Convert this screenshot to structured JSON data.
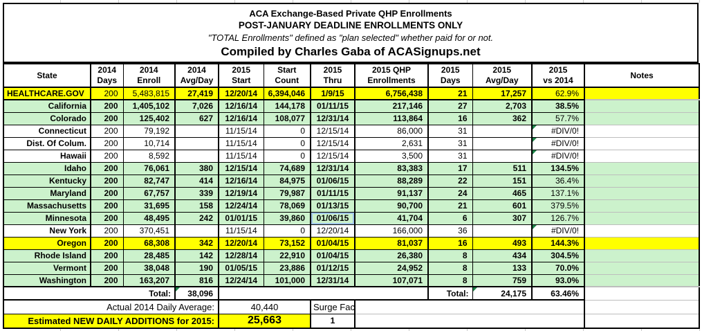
{
  "title": {
    "line1": "ACA Exchange-Based Private QHP Enrollments",
    "line2": "POST-JANUARY DEADLINE ENROLLMENTS ONLY",
    "line3": "\"TOTAL Enrollments\" defined as \"plan selected\" whether paid for or not.",
    "line4": "Compiled by Charles Gaba of ACASignups.net"
  },
  "colors": {
    "row_yellow": "#ffff00",
    "row_green": "#ccf2cc",
    "row_white": "#ffffff",
    "selection_blue": "#9fc5e8",
    "error_indicator_green": "#1e8449"
  },
  "columns": [
    {
      "key": "state",
      "label": "State"
    },
    {
      "key": "days-2014",
      "label": "2014\nDays"
    },
    {
      "key": "enroll-2014",
      "label": "2014\nEnroll"
    },
    {
      "key": "avgday-2014",
      "label": "2014\nAvg/Day"
    },
    {
      "key": "start-2015",
      "label": "2015\nStart"
    },
    {
      "key": "start-count",
      "label": "Start\nCount"
    },
    {
      "key": "thru-2015",
      "label": "2015\nThru"
    },
    {
      "key": "qhp-2015",
      "label": "2015 QHP\nEnrollments"
    },
    {
      "key": "days-2015",
      "label": "2015\nDays"
    },
    {
      "key": "avgday-2015",
      "label": "2015\nAvg/Day"
    },
    {
      "key": "vs-2014",
      "label": "2015\nvs 2014"
    },
    {
      "key": "notes",
      "label": "Notes"
    }
  ],
  "rows": [
    {
      "state": "HEALTHCARE.GOV",
      "bg": "yellow",
      "cells": [
        "200",
        "5,483,815",
        "27,419",
        "12/20/14",
        "6,394,046",
        "1/9/15",
        "6,756,438",
        "21",
        "17,257",
        "62.9%",
        ""
      ],
      "regular": [
        0,
        1,
        9
      ]
    },
    {
      "state": "California",
      "bg": "green",
      "cells": [
        "200",
        "1,405,102",
        "7,026",
        "12/16/14",
        "144,178",
        "01/11/15",
        "217,146",
        "27",
        "2,703",
        "38.5%",
        ""
      ],
      "regular": []
    },
    {
      "state": "Colorado",
      "bg": "green",
      "cells": [
        "200",
        "125,402",
        "627",
        "12/16/14",
        "108,077",
        "12/31/14",
        "113,864",
        "16",
        "362",
        "57.7%",
        ""
      ],
      "regular": [
        9
      ]
    },
    {
      "state": "Connecticut",
      "bg": "white",
      "muted": true,
      "tri": [
        9
      ],
      "cells": [
        "200",
        "79,192",
        "",
        "11/15/14",
        "0",
        "12/15/14",
        "86,000",
        "31",
        "",
        "#DIV/0!",
        ""
      ]
    },
    {
      "state": "Dist. Of Colum.",
      "bg": "white",
      "muted": true,
      "tri": [
        9
      ],
      "cells": [
        "200",
        "10,714",
        "",
        "11/15/14",
        "0",
        "12/15/14",
        "2,631",
        "31",
        "",
        "#DIV/0!",
        ""
      ]
    },
    {
      "state": "Hawaii",
      "bg": "white",
      "muted": true,
      "tri": [
        9
      ],
      "cells": [
        "200",
        "8,592",
        "",
        "11/15/14",
        "0",
        "12/15/14",
        "3,500",
        "31",
        "",
        "#DIV/0!",
        ""
      ]
    },
    {
      "state": "Idaho",
      "bg": "green",
      "cells": [
        "200",
        "76,061",
        "380",
        "12/15/14",
        "74,689",
        "12/31/14",
        "83,383",
        "17",
        "511",
        "134.5%",
        ""
      ],
      "regular": []
    },
    {
      "state": "Kentucky",
      "bg": "green",
      "cells": [
        "200",
        "82,747",
        "414",
        "12/16/14",
        "84,975",
        "01/06/15",
        "88,289",
        "22",
        "151",
        "36.4%",
        ""
      ],
      "regular": [
        9
      ]
    },
    {
      "state": "Maryland",
      "bg": "green",
      "cells": [
        "200",
        "67,757",
        "339",
        "12/19/14",
        "79,987",
        "01/11/15",
        "91,137",
        "24",
        "465",
        "137.1%",
        ""
      ],
      "regular": [
        9
      ]
    },
    {
      "state": "Massachusetts",
      "bg": "green",
      "cells": [
        "200",
        "31,695",
        "158",
        "12/24/14",
        "78,069",
        "01/13/15",
        "90,700",
        "21",
        "601",
        "379.5%",
        ""
      ],
      "regular": [
        9
      ]
    },
    {
      "state": "Minnesota",
      "bg": "green",
      "selected": 5,
      "cells": [
        "200",
        "48,495",
        "242",
        "01/01/15",
        "39,860",
        "01/06/15",
        "41,704",
        "6",
        "307",
        "126.7%",
        ""
      ],
      "regular": [
        9
      ]
    },
    {
      "state": "New York",
      "bg": "white",
      "muted": true,
      "tri": [
        9
      ],
      "cells": [
        "200",
        "370,451",
        "",
        "11/15/14",
        "0",
        "12/20/14",
        "166,000",
        "36",
        "",
        "#DIV/0!",
        ""
      ]
    },
    {
      "state": "Oregon",
      "bg": "yellow",
      "cells": [
        "200",
        "68,308",
        "342",
        "12/20/14",
        "73,152",
        "01/04/15",
        "81,037",
        "16",
        "493",
        "144.3%",
        ""
      ],
      "regular": []
    },
    {
      "state": "Rhode Island",
      "bg": "green",
      "cells": [
        "200",
        "28,485",
        "142",
        "12/28/14",
        "22,910",
        "01/04/15",
        "26,380",
        "8",
        "434",
        "304.5%",
        ""
      ],
      "regular": []
    },
    {
      "state": "Vermont",
      "bg": "green",
      "cells": [
        "200",
        "38,048",
        "190",
        "01/05/15",
        "23,886",
        "01/12/15",
        "24,952",
        "8",
        "133",
        "70.0%",
        ""
      ],
      "regular": []
    },
    {
      "state": "Washington",
      "bg": "green",
      "cells": [
        "200",
        "163,207",
        "816",
        "12/24/14",
        "101,000",
        "12/31/14",
        "107,071",
        "8",
        "759",
        "93.0%",
        ""
      ],
      "regular": []
    }
  ],
  "totals": {
    "label_left": "Total:",
    "avg_day_2014": "38,096",
    "label_right": "Total:",
    "avg_day_2015": "24,175",
    "pct_2015_vs_2014": "63.46%"
  },
  "summary": {
    "avg_label": "Actual 2014 Daily Average:",
    "avg_value": "40,440",
    "surge_label": "Surge Factor:",
    "surge_value": "1",
    "estimate_label": "Estimated NEW DAILY ADDITIONS for 2015:",
    "estimate_value": "25,663"
  }
}
